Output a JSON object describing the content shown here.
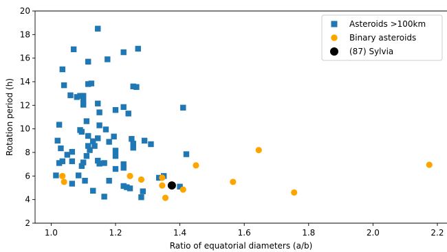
{
  "chart_data": {
    "type": "scatter",
    "title": "",
    "xlabel": "Ratio of equatorial diameters (a/b)",
    "ylabel": "Rotation period (h)",
    "xlim": [
      0.95,
      2.23
    ],
    "ylim": [
      2,
      20
    ],
    "xticks": [
      1.0,
      1.2,
      1.4,
      1.6,
      1.8,
      2.0,
      2.2
    ],
    "yticks": [
      2,
      4,
      6,
      8,
      10,
      12,
      14,
      16,
      18,
      20
    ],
    "xtick_labels": [
      "1.0",
      "1.2",
      "1.4",
      "1.6",
      "1.8",
      "2.0",
      "2.2"
    ],
    "ytick_labels": [
      "2",
      "4",
      "6",
      "8",
      "10",
      "12",
      "14",
      "16",
      "18",
      "20"
    ],
    "grid": false,
    "legend_position": "top-right",
    "series": [
      {
        "name": "Asteroids  >100km",
        "marker": "square",
        "color": "#1f77b4",
        "points": [
          [
            1.145,
            18.5
          ],
          [
            1.07,
            16.75
          ],
          [
            1.27,
            16.8
          ],
          [
            1.225,
            16.5
          ],
          [
            1.175,
            15.9
          ],
          [
            1.115,
            15.7
          ],
          [
            1.035,
            15.05
          ],
          [
            1.04,
            13.7
          ],
          [
            1.115,
            13.8
          ],
          [
            1.125,
            13.85
          ],
          [
            1.255,
            13.6
          ],
          [
            1.265,
            13.55
          ],
          [
            1.06,
            12.85
          ],
          [
            1.08,
            12.7
          ],
          [
            1.09,
            12.8
          ],
          [
            1.1,
            12.8
          ],
          [
            1.1,
            12.35
          ],
          [
            1.1,
            12.05
          ],
          [
            1.145,
            12.15
          ],
          [
            1.225,
            11.85
          ],
          [
            1.15,
            11.4
          ],
          [
            1.2,
            11.6
          ],
          [
            1.24,
            11.3
          ],
          [
            1.41,
            11.8
          ],
          [
            1.025,
            10.35
          ],
          [
            1.11,
            10.65
          ],
          [
            1.15,
            10.3
          ],
          [
            1.17,
            9.95
          ],
          [
            1.09,
            9.9
          ],
          [
            1.095,
            9.75
          ],
          [
            1.195,
            9.35
          ],
          [
            1.115,
            9.4
          ],
          [
            1.145,
            9.2
          ],
          [
            1.13,
            8.95
          ],
          [
            1.02,
            9.0
          ],
          [
            1.25,
            9.15
          ],
          [
            1.29,
            9.0
          ],
          [
            1.255,
            8.75
          ],
          [
            1.18,
            8.9
          ],
          [
            1.31,
            8.7
          ],
          [
            1.255,
            8.4
          ],
          [
            1.115,
            8.55
          ],
          [
            1.135,
            8.55
          ],
          [
            1.03,
            8.35
          ],
          [
            1.12,
            8.2
          ],
          [
            1.2,
            8.15
          ],
          [
            1.065,
            8.05
          ],
          [
            1.11,
            7.7
          ],
          [
            1.2,
            7.7
          ],
          [
            1.05,
            7.8
          ],
          [
            1.025,
            7.1
          ],
          [
            1.035,
            7.25
          ],
          [
            1.065,
            7.25
          ],
          [
            1.145,
            7.3
          ],
          [
            1.15,
            7.05
          ],
          [
            1.165,
            7.1
          ],
          [
            1.1,
            7.15
          ],
          [
            1.225,
            7.0
          ],
          [
            1.42,
            7.85
          ],
          [
            1.095,
            6.85
          ],
          [
            1.2,
            6.6
          ],
          [
            1.225,
            6.7
          ],
          [
            1.015,
            6.05
          ],
          [
            1.085,
            6.05
          ],
          [
            1.35,
            6.0
          ],
          [
            1.335,
            5.85
          ],
          [
            1.18,
            5.6
          ],
          [
            1.105,
            5.6
          ],
          [
            1.065,
            5.35
          ],
          [
            1.225,
            5.15
          ],
          [
            1.235,
            5.05
          ],
          [
            1.245,
            4.95
          ],
          [
            1.4,
            5.1
          ],
          [
            1.13,
            4.75
          ],
          [
            1.285,
            4.7
          ],
          [
            1.165,
            4.25
          ],
          [
            1.28,
            4.2
          ]
        ]
      },
      {
        "name": "Binary asteroids",
        "marker": "circle",
        "color": "#ffa500",
        "points": [
          [
            1.035,
            6.0
          ],
          [
            1.04,
            5.5
          ],
          [
            1.245,
            6.0
          ],
          [
            1.28,
            5.7
          ],
          [
            1.345,
            5.85
          ],
          [
            1.345,
            5.2
          ],
          [
            1.355,
            4.15
          ],
          [
            1.41,
            4.85
          ],
          [
            1.45,
            6.9
          ],
          [
            1.565,
            5.5
          ],
          [
            1.645,
            8.2
          ],
          [
            1.755,
            4.6
          ],
          [
            2.175,
            6.95
          ]
        ]
      },
      {
        "name": "(87) Sylvia",
        "marker": "circle",
        "color": "#000000",
        "points": [
          [
            1.375,
            5.2
          ]
        ]
      }
    ]
  }
}
